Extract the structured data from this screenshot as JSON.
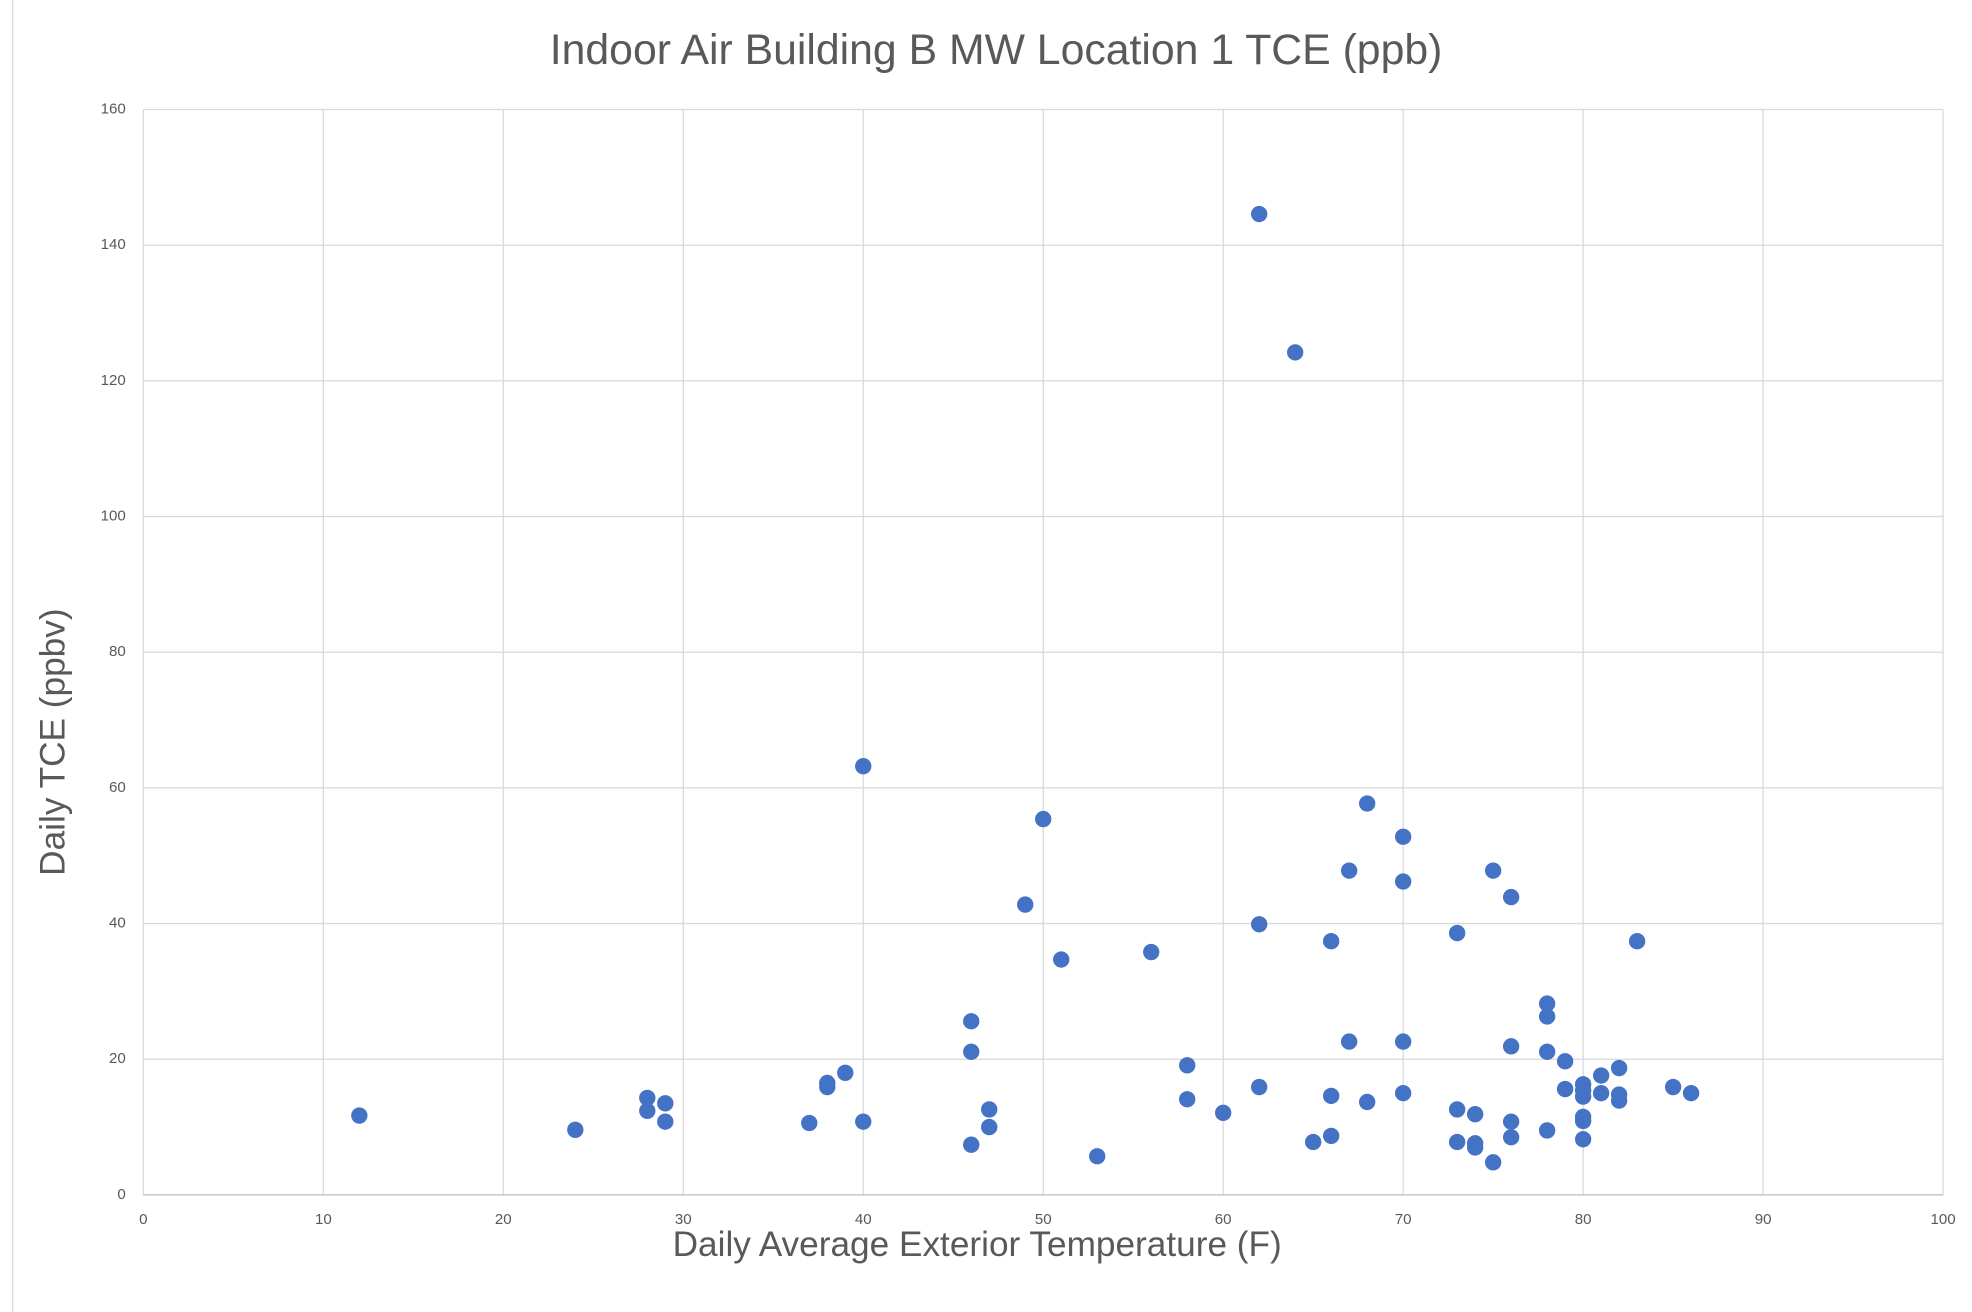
{
  "chart_data": {
    "type": "scatter",
    "title": "Indoor Air Building B MW Location 1 TCE (ppb)",
    "x_label": "Daily Average Exterior Temperature (F)",
    "y_label": "Daily TCE  (ppbv)",
    "color": "#4472c4",
    "grid": true,
    "xlim": [
      0,
      100
    ],
    "xticks": [
      0,
      10,
      20,
      30,
      40,
      50,
      60,
      70,
      80,
      90,
      100
    ],
    "ylim": [
      0,
      160
    ],
    "yticks": [
      0,
      20,
      40,
      60,
      80,
      100,
      120,
      140,
      160
    ],
    "x": [
      12,
      24,
      28,
      28,
      29,
      29,
      37,
      38,
      38,
      39,
      40,
      40,
      46,
      46,
      46,
      47,
      47,
      49,
      50,
      51,
      53,
      56,
      58,
      58,
      60,
      62,
      62,
      62,
      64,
      65,
      66,
      66,
      66,
      67,
      67,
      68,
      68,
      70,
      70,
      70,
      70,
      73,
      73,
      73,
      74,
      74,
      74,
      75,
      75,
      76,
      76,
      76,
      76,
      78,
      78,
      78,
      78,
      79,
      79,
      80,
      80,
      80,
      80,
      80,
      80,
      81,
      81,
      82,
      82,
      82,
      83,
      85,
      86
    ],
    "values": [
      11.7,
      9.6,
      14.3,
      12.4,
      13.5,
      10.8,
      10.6,
      16.5,
      15.9,
      18.0,
      63.2,
      10.8,
      25.6,
      21.1,
      7.4,
      12.6,
      10.0,
      42.8,
      55.4,
      34.7,
      5.7,
      35.8,
      19.1,
      14.1,
      12.1,
      144.6,
      39.9,
      15.9,
      124.2,
      7.8,
      37.4,
      14.6,
      8.7,
      47.8,
      22.6,
      57.7,
      13.7,
      52.8,
      46.2,
      22.6,
      15.0,
      38.6,
      12.6,
      7.8,
      11.9,
      7.6,
      7.0,
      47.8,
      4.8,
      43.9,
      21.9,
      10.8,
      8.5,
      28.2,
      26.3,
      21.1,
      9.5,
      19.7,
      15.6,
      16.3,
      15.4,
      14.5,
      11.5,
      10.9,
      8.2,
      17.6,
      15.0,
      18.7,
      14.8,
      13.9,
      37.4,
      15.9,
      15.0
    ]
  }
}
